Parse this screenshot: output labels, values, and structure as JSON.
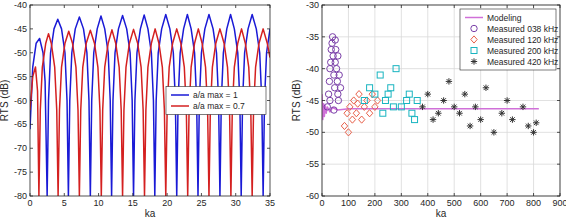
{
  "chart_data": [
    {
      "type": "line",
      "x_label": "ka",
      "y_label": "RTS (dB)",
      "xlim": [
        0,
        35
      ],
      "xticks": [
        0,
        5,
        10,
        15,
        20,
        25,
        30,
        35
      ],
      "ylim": [
        -80,
        -40
      ],
      "yticks": [
        -80,
        -75,
        -70,
        -65,
        -60,
        -55,
        -50,
        -45,
        -40
      ],
      "grid": false,
      "legend": "center right",
      "series": [
        {
          "name": "a/a max = 1",
          "color": "#1a1ad6",
          "line_style": "solid",
          "x": [
            0,
            0.4,
            0.9,
            1.4,
            1.9,
            2.2,
            2.5,
            2.7,
            3.0,
            3.5,
            4.05,
            4.6,
            5.1,
            5.4,
            5.6,
            5.8,
            6.1,
            6.6,
            7.2,
            7.8,
            8.3,
            8.6,
            8.8,
            9.0,
            9.3,
            9.8,
            10.35,
            10.9,
            11.4,
            11.7,
            11.9,
            12.1,
            12.4,
            12.9,
            13.5,
            14.1,
            14.6,
            14.9,
            15.1,
            15.3,
            15.6,
            16.1,
            16.65,
            17.2,
            17.7,
            18.0,
            18.2,
            18.4,
            18.7,
            19.2,
            19.8,
            20.4,
            20.9,
            21.2,
            21.4,
            21.6,
            21.9,
            22.4,
            22.95,
            23.5,
            24.0,
            24.3,
            24.5,
            24.7,
            25.0,
            25.5,
            26.1,
            26.7,
            27.2,
            27.5,
            27.7,
            27.9,
            28.2,
            28.7,
            29.25,
            29.8,
            30.3,
            30.6,
            30.8,
            31.0,
            31.3,
            31.8,
            32.4,
            33.0,
            33.5,
            33.8,
            34.0,
            34.2,
            34.5,
            35
          ],
          "values": [
            -66,
            -53,
            -48,
            -47,
            -50,
            -56,
            -80,
            -60,
            -50,
            -45,
            -43,
            -45,
            -50,
            -60,
            -80,
            -60,
            -50,
            -45,
            -42.5,
            -45,
            -50,
            -60,
            -80,
            -60,
            -50,
            -45,
            -42.3,
            -45,
            -50,
            -60,
            -80,
            -60,
            -50,
            -45,
            -42.2,
            -45,
            -50,
            -60,
            -80,
            -60,
            -50,
            -45,
            -42.1,
            -45,
            -50,
            -60,
            -80,
            -60,
            -50,
            -45,
            -42,
            -45,
            -50,
            -60,
            -80,
            -60,
            -50,
            -45,
            -42,
            -45,
            -50,
            -60,
            -80,
            -60,
            -50,
            -45,
            -42,
            -45,
            -50,
            -60,
            -80,
            -60,
            -50,
            -45,
            -42,
            -45,
            -50,
            -60,
            -80,
            -60,
            -50,
            -45,
            -42,
            -45,
            -50,
            -60,
            -80,
            -60,
            -50,
            -45
          ]
        },
        {
          "name": "a/a max = 0.7",
          "color": "#d42020",
          "line_style": "solid",
          "x": [
            0,
            0.4,
            0.8,
            1.1,
            1.3,
            1.5,
            1.8,
            2.3,
            2.7,
            3.1,
            3.6,
            3.9,
            4.1,
            4.3,
            4.6,
            5.1,
            5.65,
            6.2,
            6.7,
            7.0,
            7.2,
            7.4,
            7.7,
            8.2,
            8.8,
            9.4,
            9.9,
            10.2,
            10.4,
            10.6,
            10.9,
            11.4,
            11.95,
            12.5,
            13.0,
            13.3,
            13.5,
            13.7,
            14.0,
            14.5,
            15.1,
            15.7,
            16.2,
            16.5,
            16.7,
            16.9,
            17.2,
            17.7,
            18.25,
            18.8,
            19.3,
            19.6,
            19.8,
            20.0,
            20.3,
            20.8,
            21.4,
            22.0,
            22.5,
            22.8,
            23.0,
            23.2,
            23.5,
            24.0,
            24.55,
            25.1,
            25.6,
            25.9,
            26.1,
            26.3,
            26.6,
            27.1,
            27.7,
            28.3,
            28.8,
            29.1,
            29.3,
            29.5,
            29.8,
            30.3,
            30.85,
            31.4,
            31.9,
            32.2,
            32.4,
            32.6,
            32.9,
            33.4,
            34.0,
            34.6,
            35
          ],
          "values": [
            -62,
            -55,
            -53,
            -58,
            -80,
            -62,
            -53,
            -48,
            -46,
            -48,
            -53,
            -62,
            -80,
            -62,
            -53,
            -48,
            -45.5,
            -48,
            -53,
            -62,
            -80,
            -62,
            -53,
            -48,
            -45.3,
            -48,
            -53,
            -62,
            -80,
            -62,
            -53,
            -48,
            -45.2,
            -48,
            -53,
            -62,
            -80,
            -62,
            -53,
            -48,
            -45.1,
            -48,
            -53,
            -62,
            -80,
            -62,
            -53,
            -48,
            -45,
            -48,
            -53,
            -62,
            -80,
            -62,
            -53,
            -48,
            -45,
            -48,
            -53,
            -62,
            -80,
            -62,
            -53,
            -48,
            -45,
            -48,
            -53,
            -62,
            -80,
            -62,
            -53,
            -48,
            -45,
            -48,
            -53,
            -62,
            -80,
            -62,
            -53,
            -48,
            -45,
            -48,
            -53,
            -62,
            -80,
            -62,
            -53,
            -48,
            -45,
            -48,
            -51
          ]
        }
      ]
    },
    {
      "type": "scatter",
      "x_label": "ka",
      "y_label": "RTS (dB)",
      "xlim": [
        0,
        900
      ],
      "xticks": [
        0,
        100,
        200,
        300,
        400,
        500,
        600,
        700,
        800,
        900
      ],
      "ylim": [
        -60,
        -30
      ],
      "yticks": [
        -60,
        -55,
        -50,
        -45,
        -40,
        -35,
        -30
      ],
      "grid": true,
      "legend": "upper right",
      "series": [
        {
          "name": "Modeling",
          "type": "line",
          "color": "#d070d8",
          "line_style": "solid",
          "x": [
            0,
            3,
            6,
            9,
            12,
            16,
            20,
            30,
            40,
            60,
            100,
            200,
            400,
            600,
            820
          ],
          "values": [
            -44,
            -48,
            -45.5,
            -47.5,
            -45.8,
            -47,
            -46,
            -46.8,
            -46.1,
            -46.5,
            -46.3,
            -46.3,
            -46.3,
            -46.3,
            -46.3
          ]
        },
        {
          "name": "Measured 038 kHz",
          "color": "#7a3fa8",
          "marker": "circle",
          "x": [
            20,
            25,
            28,
            30,
            33,
            35,
            38,
            40,
            42,
            45,
            48,
            50,
            52,
            55,
            58,
            60,
            62,
            65,
            70,
            50,
            30,
            45,
            60
          ],
          "values": [
            -46,
            -44,
            -42,
            -40,
            -39,
            -37,
            -36,
            -35,
            -38,
            -41,
            -43,
            -39,
            -37,
            -40,
            -42,
            -44,
            -45,
            -41,
            -43,
            -35.5,
            -45,
            -46.5,
            -38
          ]
        },
        {
          "name": "Measured 120 kHz",
          "color": "#e8604a",
          "marker": "diamond",
          "x": [
            85,
            95,
            105,
            115,
            120,
            130,
            140,
            150,
            160,
            170,
            180,
            190,
            200,
            210,
            100,
            135
          ],
          "values": [
            -49,
            -47,
            -46,
            -48,
            -45,
            -47,
            -44,
            -48,
            -46,
            -45,
            -47,
            -44,
            -46,
            -45,
            -50,
            -45.5
          ]
        },
        {
          "name": "Measured 200 kHz",
          "color": "#18b4c0",
          "marker": "square",
          "x": [
            160,
            180,
            200,
            220,
            240,
            250,
            260,
            270,
            280,
            300,
            320,
            330,
            340,
            350,
            360,
            230
          ],
          "values": [
            -45,
            -43,
            -44,
            -41,
            -45,
            -44,
            -43,
            -46,
            -40,
            -46,
            -45,
            -44,
            -47,
            -48,
            -45,
            -47
          ]
        },
        {
          "name": "Measured 420 kHz",
          "color": "#333333",
          "marker": "star",
          "x": [
            380,
            400,
            420,
            440,
            460,
            480,
            500,
            520,
            540,
            560,
            580,
            600,
            620,
            650,
            680,
            700,
            720,
            760,
            780,
            800,
            810
          ],
          "values": [
            -46,
            -44,
            -48,
            -47,
            -45,
            -42,
            -46,
            -47,
            -44,
            -49,
            -46,
            -48,
            -43,
            -50,
            -47,
            -45,
            -48,
            -46,
            -49,
            -50,
            -48.5
          ]
        }
      ]
    }
  ]
}
